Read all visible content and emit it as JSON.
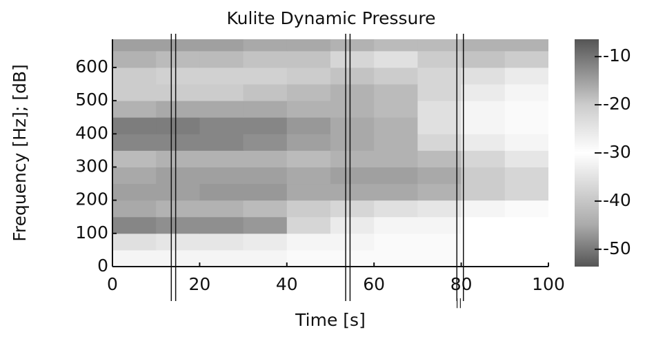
{
  "chart_data": {
    "type": "heatmap",
    "title": "Kulite Dynamic Pressure",
    "xlabel": "Time [s]",
    "ylabel": "Frequency [Hz]; [dB]",
    "xlim": [
      0,
      100
    ],
    "xticks": [
      0,
      20,
      40,
      60,
      80,
      100
    ],
    "ylim": [
      0,
      685
    ],
    "yticks": [
      0,
      100,
      200,
      300,
      400,
      500,
      600
    ],
    "xbins": [
      0,
      10,
      20,
      30,
      40,
      50,
      60,
      70,
      80,
      90,
      100
    ],
    "ybins": [
      0,
      50,
      100,
      150,
      200,
      250,
      300,
      350,
      400,
      450,
      500,
      550,
      600,
      650,
      685
    ],
    "z": [
      [
        -28,
        -28,
        -28,
        -28,
        -29,
        -29,
        -29,
        -29,
        -30,
        -30
      ],
      [
        -24,
        -25,
        -25,
        -26,
        -28,
        -28,
        -29,
        -29,
        -30,
        -30
      ],
      [
        -12,
        -13,
        -13,
        -14,
        -22,
        -26,
        -28,
        -28,
        -30,
        -30
      ],
      [
        -16,
        -17,
        -17,
        -18,
        -20,
        -22,
        -24,
        -25,
        -28,
        -29
      ],
      [
        -15,
        -15,
        -14,
        -14,
        -16,
        -16,
        -16,
        -17,
        -20,
        -22
      ],
      [
        -16,
        -15,
        -15,
        -15,
        -16,
        -15,
        -15,
        -16,
        -20,
        -22
      ],
      [
        -18,
        -17,
        -17,
        -17,
        -18,
        -17,
        -17,
        -18,
        -22,
        -25
      ],
      [
        -12,
        -12,
        -12,
        -13,
        -15,
        -16,
        -17,
        -22,
        -26,
        -28
      ],
      [
        -11,
        -11,
        -12,
        -12,
        -14,
        -16,
        -17,
        -24,
        -28,
        -29
      ],
      [
        -17,
        -16,
        -16,
        -16,
        -17,
        -17,
        -18,
        -24,
        -28,
        -29
      ],
      [
        -20,
        -20,
        -20,
        -19,
        -18,
        -17,
        -18,
        -22,
        -26,
        -28
      ],
      [
        -20,
        -21,
        -21,
        -21,
        -20,
        -19,
        -20,
        -22,
        -24,
        -26
      ],
      [
        -17,
        -18,
        -18,
        -19,
        -19,
        -22,
        -24,
        -20,
        -19,
        -20
      ],
      [
        -15,
        -15,
        -15,
        -16,
        -16,
        -17,
        -18,
        -18,
        -17,
        -17
      ]
    ],
    "clim": [
      -53.6,
      -6.4
    ],
    "cticks": [
      -10,
      -20,
      -30,
      -40,
      -50
    ],
    "colorscale": [
      {
        "value": -53.6,
        "color": "#555555"
      },
      {
        "value": -45,
        "color": "#aaaaaa"
      },
      {
        "value": -30,
        "color": "#ffffff"
      },
      {
        "value": -20,
        "color": "#cccccc"
      },
      {
        "value": -6.4,
        "color": "#555555"
      }
    ],
    "vlines": [
      13.5,
      14.5,
      53.5,
      54.5,
      79,
      80.5
    ]
  }
}
